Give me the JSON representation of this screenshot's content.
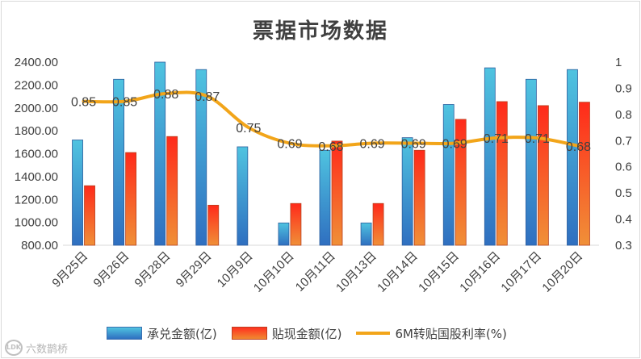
{
  "chart_data": {
    "type": "bar",
    "title": "票据市场数据",
    "categories": [
      "9月25日",
      "9月26日",
      "9月28日",
      "9月29日",
      "10月9日",
      "10月10日",
      "10月11日",
      "10月13日",
      "10月14日",
      "10月15日",
      "10月16日",
      "10月17日",
      "10月20日"
    ],
    "series": [
      {
        "name": "承兑金额(亿)",
        "type": "bar",
        "axis": "left",
        "values": [
          1720,
          2250,
          2400,
          2335,
          1660,
          995,
          1630,
          995,
          1740,
          2030,
          2350,
          2250,
          2335
        ]
      },
      {
        "name": "贴现金额(亿)",
        "type": "bar",
        "axis": "left",
        "values": [
          1320,
          1610,
          1750,
          1150,
          null,
          1165,
          1710,
          1165,
          1630,
          1900,
          2055,
          2020,
          2050
        ]
      },
      {
        "name": "6M转贴国股利率(%)",
        "type": "line",
        "axis": "right",
        "values": [
          0.85,
          0.85,
          0.88,
          0.87,
          0.75,
          0.69,
          0.68,
          0.69,
          0.69,
          0.69,
          0.71,
          0.71,
          0.68
        ],
        "labels": [
          "0.85",
          "0.85",
          "0.88",
          "0.87",
          "0.75",
          "0.69",
          "0.68",
          "0.69",
          "0.69",
          "0.69",
          "0.71",
          "0.71",
          "0.68"
        ]
      }
    ],
    "y_left": {
      "min": 800,
      "max": 2400,
      "step": 200,
      "tick_labels": [
        "800.00",
        "1000.00",
        "1200.00",
        "1400.00",
        "1600.00",
        "1800.00",
        "2000.00",
        "2200.00",
        "2400.00"
      ]
    },
    "y_right": {
      "min": 0.3,
      "max": 1.0,
      "step": 0.1,
      "tick_labels": [
        "0.3",
        "0.4",
        "0.5",
        "0.6",
        "0.7",
        "0.8",
        "0.9",
        "1"
      ]
    },
    "colors": {
      "bar1_top": "#4fc3e0",
      "bar1_bottom": "#2f6fc0",
      "bar2_top": "#ff2a1a",
      "bar2_bottom": "#f09038",
      "line": "#f2a51a",
      "axis_text": "#404040",
      "grid": "#d9d9d9"
    },
    "legend_position": "bottom"
  },
  "watermark": {
    "logo": "LDK",
    "text": "六数鹊桥"
  }
}
